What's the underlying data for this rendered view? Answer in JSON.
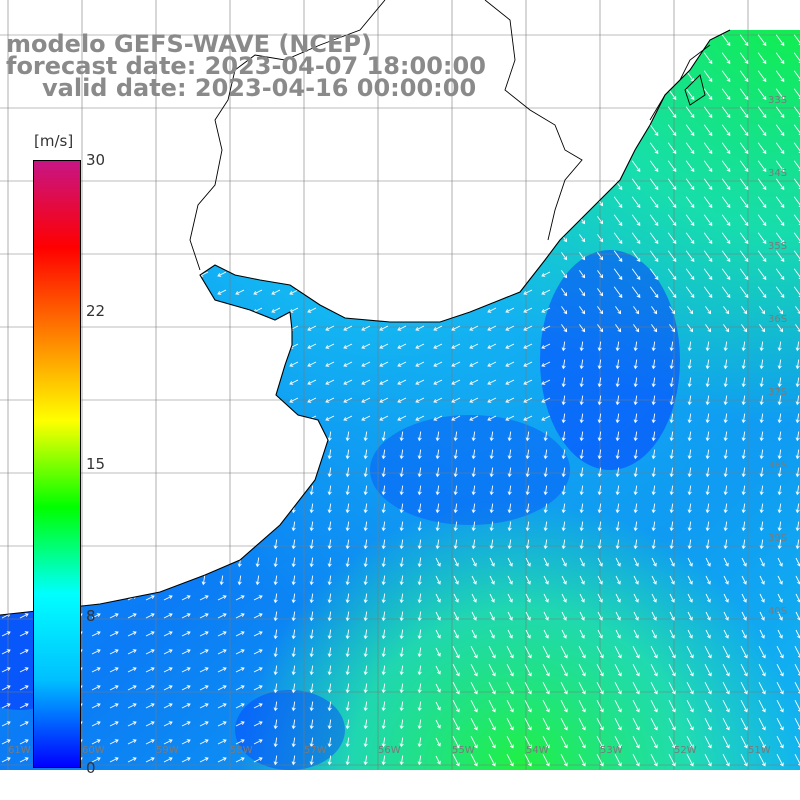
{
  "title": {
    "line1": "modelo GEFS-WAVE (NCEP)",
    "line2": "forecast date: 2023-04-07 18:00:00",
    "line3": "valid date: 2023-04-16 00:00:00"
  },
  "colorbar": {
    "units": "[m/s]",
    "ticks": [
      "30",
      "22",
      "15",
      "8",
      "0"
    ],
    "tick_values": [
      30,
      22,
      15,
      8,
      0
    ],
    "range": [
      0,
      30
    ],
    "colors": [
      "#0000ff",
      "#00bfff",
      "#00ffff",
      "#00ff00",
      "#ffff00",
      "#ff7f00",
      "#ff0000",
      "#c71585"
    ]
  },
  "map": {
    "land_color": "#ffffff",
    "coastline_color": "#000000",
    "grid_color": "#7a7a7a",
    "lat_labels": [
      "33S",
      "34S",
      "35S",
      "36S",
      "37S",
      "38S",
      "39S",
      "40S"
    ],
    "lon_labels": [
      "61W",
      "60W",
      "59W",
      "58W",
      "57W",
      "56W",
      "55W",
      "54W",
      "53W",
      "52W",
      "51W"
    ]
  }
}
